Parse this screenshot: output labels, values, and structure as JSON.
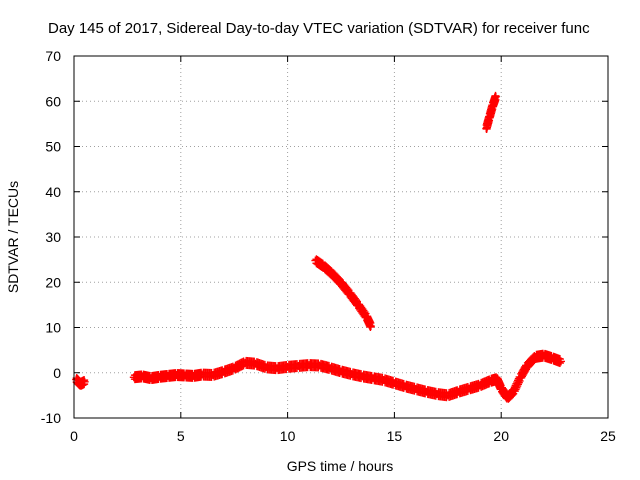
{
  "chart_data": {
    "type": "scatter",
    "title": "Day 145 of 2017, Sidereal Day-to-day VTEC variation (SDTVAR) for receiver func",
    "xlabel": "GPS time / hours",
    "ylabel": "SDTVAR / TECUs",
    "xlim": [
      0,
      25
    ],
    "ylim": [
      -10,
      70
    ],
    "xticks": [
      0,
      5,
      10,
      15,
      20,
      25
    ],
    "yticks": [
      -10,
      0,
      10,
      20,
      30,
      40,
      50,
      60,
      70
    ],
    "grid": true,
    "marker": "plus",
    "color": "#ff0000",
    "series": [
      {
        "name": "main",
        "points": [
          [
            0.1,
            -1.5
          ],
          [
            0.3,
            -2.5
          ],
          [
            0.5,
            -2.0
          ],
          [
            2.8,
            -1.0
          ],
          [
            3.2,
            -0.8
          ],
          [
            3.6,
            -1.2
          ],
          [
            4.0,
            -0.9
          ],
          [
            4.4,
            -0.7
          ],
          [
            4.8,
            -0.5
          ],
          [
            5.2,
            -0.6
          ],
          [
            5.6,
            -0.7
          ],
          [
            6.0,
            -0.4
          ],
          [
            6.5,
            -0.5
          ],
          [
            7.0,
            0.2
          ],
          [
            7.5,
            1.0
          ],
          [
            8.0,
            2.2
          ],
          [
            8.5,
            2.0
          ],
          [
            9.0,
            1.2
          ],
          [
            9.5,
            1.0
          ],
          [
            10.0,
            1.3
          ],
          [
            10.5,
            1.5
          ],
          [
            11.0,
            1.7
          ],
          [
            11.5,
            1.6
          ],
          [
            12.0,
            1.0
          ],
          [
            12.5,
            0.3
          ],
          [
            13.0,
            -0.3
          ],
          [
            13.5,
            -0.8
          ],
          [
            14.0,
            -1.2
          ],
          [
            14.5,
            -1.6
          ],
          [
            15.0,
            -2.3
          ],
          [
            15.5,
            -3.0
          ],
          [
            16.0,
            -3.6
          ],
          [
            16.5,
            -4.2
          ],
          [
            17.0,
            -4.7
          ],
          [
            17.5,
            -5.0
          ],
          [
            18.0,
            -4.2
          ],
          [
            18.5,
            -3.5
          ],
          [
            19.0,
            -2.8
          ],
          [
            19.5,
            -1.8
          ],
          [
            19.8,
            -1.4
          ],
          [
            20.0,
            -3.5
          ],
          [
            20.3,
            -5.5
          ],
          [
            20.6,
            -4.0
          ],
          [
            20.9,
            -1.0
          ],
          [
            21.2,
            1.5
          ],
          [
            21.6,
            3.5
          ],
          [
            22.0,
            3.8
          ],
          [
            22.4,
            3.2
          ],
          [
            22.8,
            2.5
          ]
        ]
      },
      {
        "name": "segment-2",
        "points": [
          [
            11.3,
            24.8
          ],
          [
            11.7,
            23.5
          ],
          [
            12.1,
            21.8
          ],
          [
            12.5,
            19.8
          ],
          [
            12.9,
            17.5
          ],
          [
            13.3,
            15.0
          ],
          [
            13.7,
            12.3
          ],
          [
            13.9,
            10.3
          ]
        ]
      },
      {
        "name": "segment-3",
        "points": [
          [
            19.3,
            54.0
          ],
          [
            19.45,
            56.5
          ],
          [
            19.6,
            59.0
          ],
          [
            19.75,
            61.0
          ]
        ]
      }
    ]
  }
}
